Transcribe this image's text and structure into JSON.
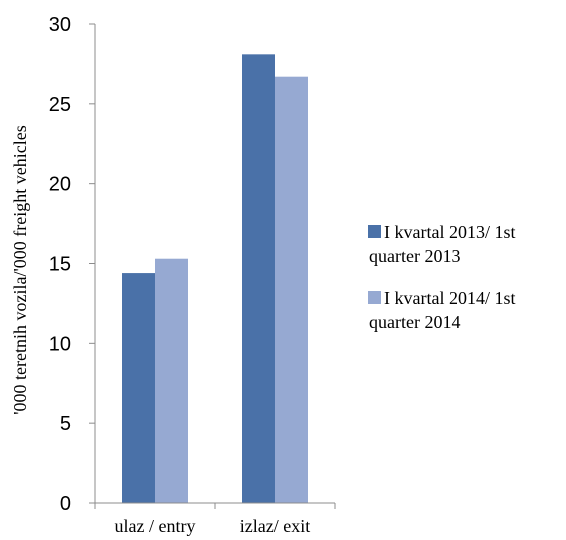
{
  "chart_data": {
    "type": "bar",
    "categories": [
      "ulaz / entry",
      "izlaz/ exit"
    ],
    "series": [
      {
        "name": "I kvartal 2013/ 1st quarter 2013",
        "values": [
          14.4,
          28.1
        ],
        "color": "#4a71a8",
        "legend_lines": [
          "I kvartal 2013/ 1st",
          "quarter 2013"
        ]
      },
      {
        "name": "I kvartal 2014/ 1st quarter 2014",
        "values": [
          15.3,
          26.7
        ],
        "color": "#96a9d2",
        "legend_lines": [
          "I kvartal 2014/ 1st",
          "quarter 2014"
        ]
      }
    ],
    "title": "",
    "xlabel": "",
    "ylabel": "'000 teretnih vozila/'000 freight vehicles",
    "ylim": [
      0,
      30
    ],
    "yticks": [
      0,
      5,
      10,
      15,
      20,
      25,
      30
    ],
    "grid": false,
    "legend_position": "right"
  }
}
